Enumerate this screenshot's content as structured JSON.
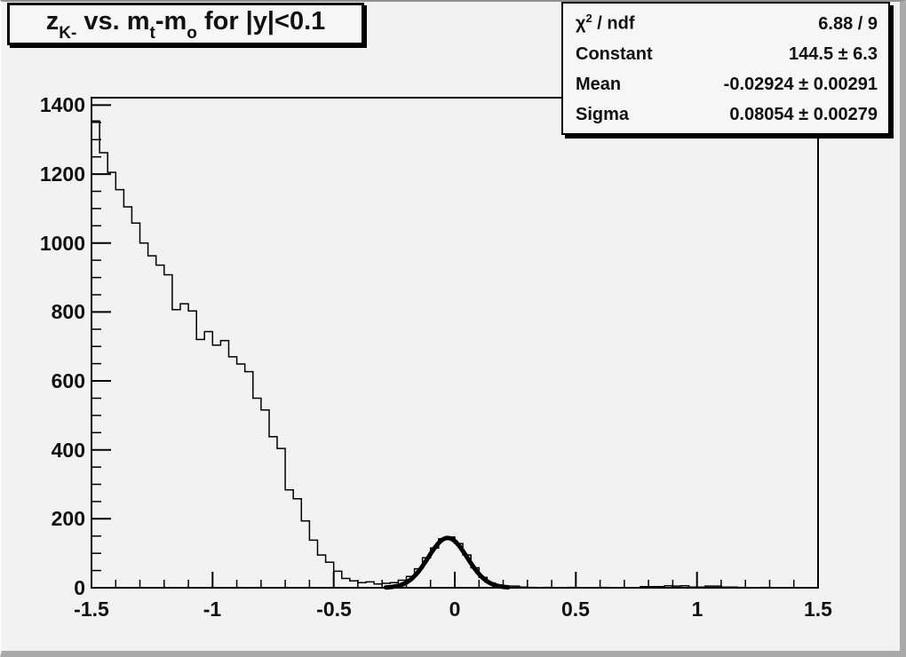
{
  "window": {
    "background": "#f2f2f2",
    "bevel_shadow": "#a9a9a9",
    "line_color": "#000000"
  },
  "title_box": {
    "full_title": "z_{K-} vs. m_{t}-m_{o} for |y|<0.1",
    "parts": {
      "base1": "z",
      "sub1": "K-",
      "base2": " vs. m",
      "sub2": "t",
      "base3": "-m",
      "sub3": "o",
      "base4": " for |y|<0.1"
    }
  },
  "stats_box": {
    "rows": [
      {
        "label_chi": "χ",
        "label_sup": "2",
        "label_rest": " / ndf",
        "value": "6.88 / 9"
      },
      {
        "label": "Constant",
        "value": "144.5 ± 6.3"
      },
      {
        "label": "Mean",
        "value": "-0.02924 ± 0.00291"
      },
      {
        "label": "Sigma",
        "value": "0.08054 ± 0.00279"
      }
    ]
  },
  "chart_data": {
    "type": "bar",
    "subtype": "step-histogram",
    "title": "z_{K-} vs. m_{t}-m_{o} for |y|<0.1",
    "xlabel": "",
    "ylabel": "",
    "x_range": [
      -1.5,
      1.5
    ],
    "y_range": [
      0,
      1421.7
    ],
    "grid": false,
    "legend_position": "none",
    "x_ticks": {
      "values": [
        -1.5,
        -1,
        -0.5,
        0,
        0.5,
        1,
        1.5
      ],
      "labels": [
        "-1.5",
        "-1",
        "-0.5",
        "0",
        "0.5",
        "1",
        "1.5"
      ],
      "minor_step": 0.1
    },
    "y_ticks": {
      "values": [
        0,
        200,
        400,
        600,
        800,
        1000,
        1200,
        1400
      ],
      "labels": [
        "0",
        "200",
        "400",
        "600",
        "800",
        "1000",
        "1200",
        "1400"
      ],
      "minor_step": 50
    },
    "bins": {
      "start": -1.5,
      "width": 0.0333333,
      "values": [
        1354,
        1262,
        1205,
        1155,
        1105,
        1058,
        1000,
        963,
        936,
        908,
        807,
        824,
        803,
        720,
        743,
        704,
        717,
        670,
        649,
        627,
        550,
        516,
        438,
        404,
        284,
        258,
        194,
        138,
        95,
        74,
        48,
        27,
        20,
        15,
        17,
        11,
        13,
        15,
        22,
        33,
        55,
        87,
        115,
        142,
        147,
        128,
        95,
        58,
        30,
        14,
        8,
        5,
        5,
        2,
        1,
        0,
        1,
        0,
        0,
        1,
        0,
        0,
        0,
        1,
        0,
        0,
        0,
        0,
        3,
        3,
        3,
        6,
        5,
        6,
        2,
        2,
        5,
        5,
        2,
        2,
        1,
        0,
        0,
        1,
        0,
        0,
        0,
        0,
        0,
        0
      ]
    },
    "fit": {
      "type": "gaussian",
      "chi2_ndf": "6.88 / 9",
      "constant": 144.5,
      "constant_err": 6.3,
      "mean": -0.02924,
      "mean_err": 0.00291,
      "sigma": 0.08054,
      "sigma_err": 0.00279,
      "draw_range": [
        -0.285,
        0.225
      ],
      "line_width": 5,
      "color": "#000000"
    },
    "hist_color": "#000000"
  }
}
